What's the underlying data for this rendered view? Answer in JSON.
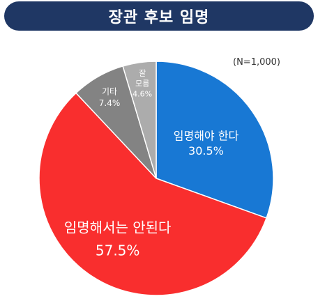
{
  "title": "장관 후보 임명",
  "note": "(N=1,000)",
  "chart_data": {
    "type": "pie",
    "start_angle_deg": 0,
    "direction": "clockwise",
    "slices": [
      {
        "label": "임명해야 한다",
        "value": 30.5,
        "value_text": "30.5%",
        "color": "#1878d4"
      },
      {
        "label": "임명해서는 안된다",
        "value": 57.5,
        "value_text": "57.5%",
        "color": "#f92e2e"
      },
      {
        "label": "기타",
        "value": 7.4,
        "value_text": "7.4%",
        "color": "#838383"
      },
      {
        "label": "잘\n모름",
        "value": 4.6,
        "value_text": "4.6%",
        "color": "#acacac"
      }
    ]
  }
}
